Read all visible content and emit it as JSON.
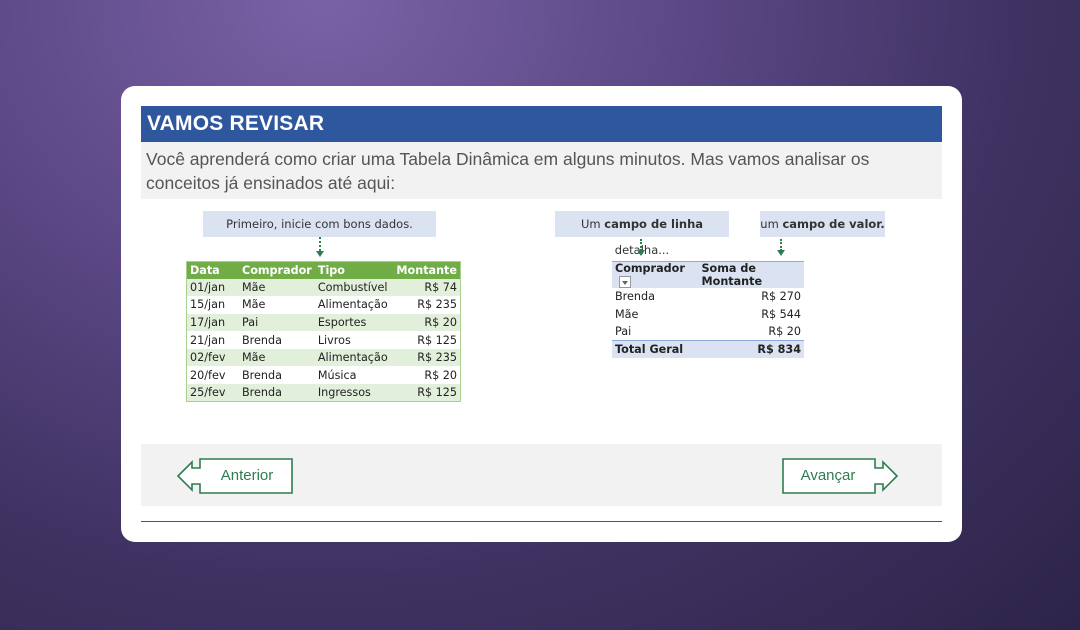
{
  "title": "VAMOS REVISAR",
  "intro": "Você aprenderá como criar uma Tabela Dinâmica em alguns minutos. Mas vamos analisar os conceitos já ensinados até aqui:",
  "callouts": {
    "data": "Primeiro, inicie com bons dados.",
    "row_field_pre": "Um ",
    "row_field_bold": "campo de linha",
    "row_field_post": " detalha...",
    "value_field_pre": "um ",
    "value_field_bold": "campo de valor."
  },
  "source_table": {
    "headers": [
      "Data",
      "Comprador",
      "Tipo",
      "Montante"
    ],
    "rows": [
      [
        "01/jan",
        "Mãe",
        "Combustível",
        "R$ 74"
      ],
      [
        "15/jan",
        "Mãe",
        "Alimentação",
        "R$ 235"
      ],
      [
        "17/jan",
        "Pai",
        "Esportes",
        "R$ 20"
      ],
      [
        "21/jan",
        "Brenda",
        "Livros",
        "R$ 125"
      ],
      [
        "02/fev",
        "Mãe",
        "Alimentação",
        "R$ 235"
      ],
      [
        "20/fev",
        "Brenda",
        "Música",
        "R$ 20"
      ],
      [
        "25/fev",
        "Brenda",
        "Ingressos",
        "R$ 125"
      ]
    ]
  },
  "pivot_table": {
    "headers": [
      "Comprador",
      "Soma de Montante"
    ],
    "rows": [
      [
        "Brenda",
        "R$ 270"
      ],
      [
        "Mãe",
        "R$ 544"
      ],
      [
        "Pai",
        "R$ 20"
      ]
    ],
    "total": [
      "Total Geral",
      "R$ 834"
    ]
  },
  "nav": {
    "prev": "Anterior",
    "next": "Avançar"
  },
  "colors": {
    "title_bar": "#2e579e",
    "table_header": "#70ad47",
    "table_band": "#e2efda",
    "pivot_header": "#dbe3f2",
    "nav_accent": "#2e7d4f"
  }
}
